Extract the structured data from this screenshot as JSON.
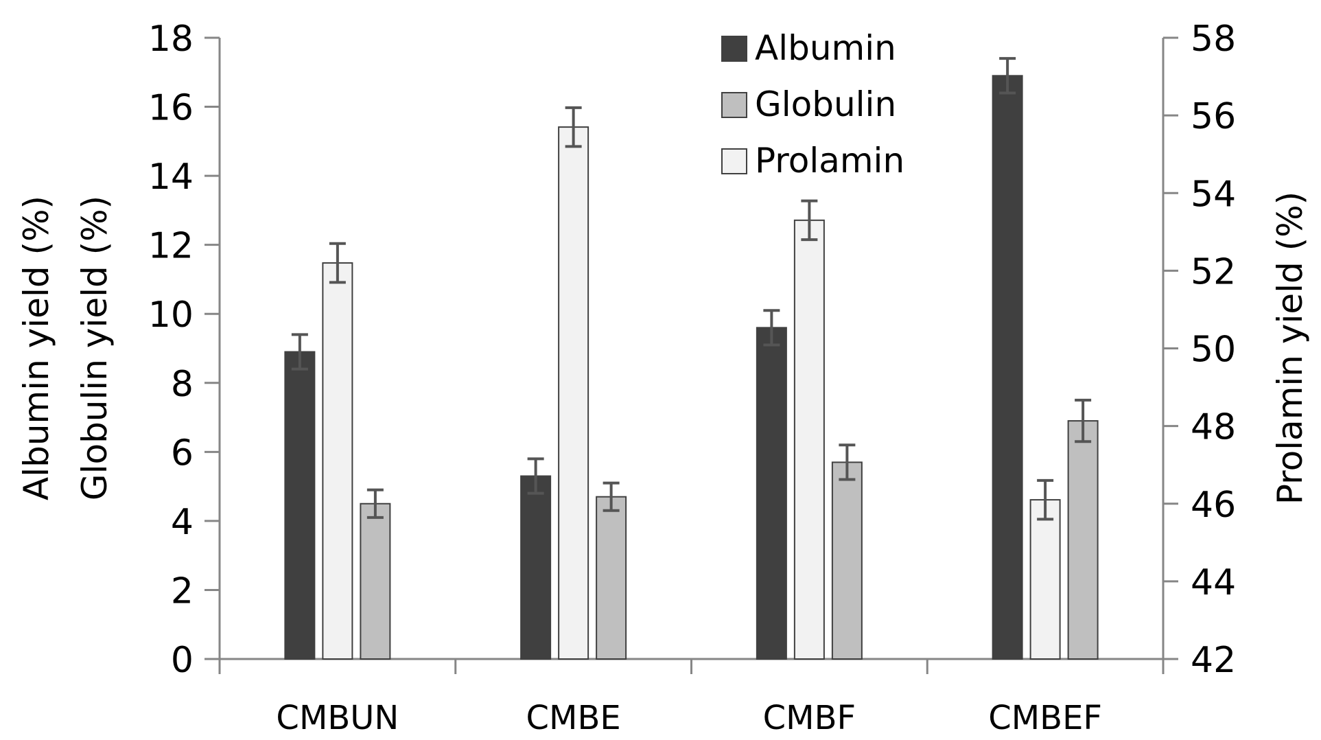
{
  "chart_data": {
    "type": "bar",
    "title": "",
    "xlabel": "",
    "ylabel": [
      "Albumin yield (%)",
      "Globulin yield (%)"
    ],
    "y2label": "Prolamin yield (%)",
    "ylim": [
      0,
      18
    ],
    "yticks": [
      0,
      2,
      4,
      6,
      8,
      10,
      12,
      14,
      16,
      18
    ],
    "y2lim": [
      42,
      58
    ],
    "y2ticks": [
      42,
      44,
      46,
      48,
      50,
      52,
      54,
      56,
      58
    ],
    "categories": [
      "CMBUN",
      "CMBE",
      "CMBF",
      "CMBEF"
    ],
    "grid": false,
    "legend_position": "top-center",
    "series": [
      {
        "name": "Albumin",
        "axis": "left",
        "color": "#404040",
        "values": [
          8.9,
          5.3,
          9.6,
          16.9
        ],
        "errors": [
          0.5,
          0.5,
          0.5,
          0.5
        ]
      },
      {
        "name": "Globulin",
        "axis": "left",
        "color": "#bfbfbf",
        "values": [
          4.5,
          4.7,
          5.7,
          6.9
        ],
        "errors": [
          0.4,
          0.4,
          0.5,
          0.6
        ]
      },
      {
        "name": "Prolamin",
        "axis": "right",
        "color": "#f2f2f2",
        "values": [
          52.2,
          55.7,
          53.3,
          46.1
        ],
        "errors": [
          0.5,
          0.5,
          0.5,
          0.5
        ]
      }
    ]
  }
}
